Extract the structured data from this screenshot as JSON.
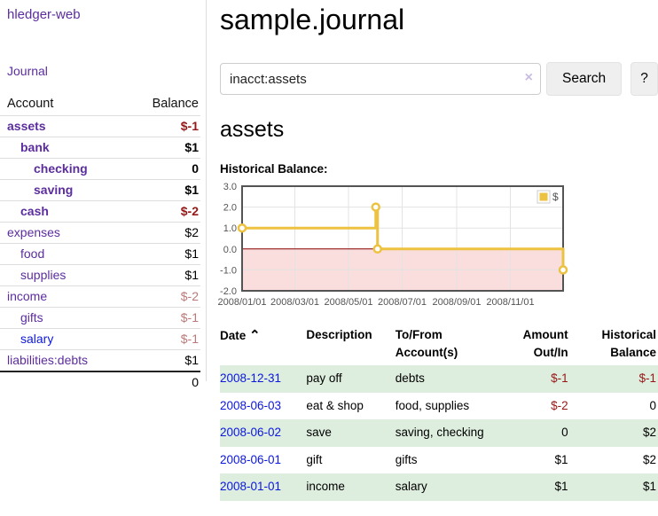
{
  "app": {
    "brand": "hledger-web"
  },
  "colors": {
    "link_purple": "#5c2d9e",
    "link_blue": "#0b16e0",
    "negative_red": "#961717",
    "negative_muted_red": "#bb7878",
    "row_stripe_green": "#deeede",
    "chart_series_yellow": "#EDC240",
    "chart_negative_fill": "#fadddd",
    "chart_zero_line": "#8b0000"
  },
  "sidebar": {
    "journal_link": "Journal",
    "headers": {
      "account": "Account",
      "balance": "Balance"
    },
    "accounts": [
      {
        "name": "assets",
        "balance": "$-1",
        "indent": 1,
        "bold": true
      },
      {
        "name": "bank",
        "balance": "$1",
        "indent": 2,
        "bold": true
      },
      {
        "name": "checking",
        "balance": "0",
        "indent": 3,
        "bold": true
      },
      {
        "name": "saving",
        "balance": "$1",
        "indent": 3,
        "bold": true
      },
      {
        "name": "cash",
        "balance": "$-2",
        "indent": 2,
        "bold": true
      },
      {
        "name": "expenses",
        "balance": "$2",
        "indent": 1,
        "bold": false
      },
      {
        "name": "food",
        "balance": "$1",
        "indent": 2,
        "bold": false
      },
      {
        "name": "supplies",
        "balance": "$1",
        "indent": 2,
        "bold": false
      },
      {
        "name": "income",
        "balance": "$-2",
        "indent": 1,
        "bold": false
      },
      {
        "name": "gifts",
        "balance": "$-1",
        "indent": 2,
        "bold": false
      },
      {
        "name": "salary",
        "balance": "$-1",
        "indent": 2,
        "bold": false
      },
      {
        "name": "liabilities:debts",
        "balance": "$1",
        "indent": 1,
        "bold": false
      }
    ],
    "total": "0"
  },
  "main": {
    "title": "sample.journal",
    "search": {
      "value": "inacct:assets",
      "clear_icon": "×",
      "search_label": "Search",
      "help_label": "?"
    },
    "account_heading": "assets",
    "chart_label": "Historical Balance:",
    "chart_data": {
      "type": "line",
      "step": true,
      "title": "Historical Balance:",
      "series": [
        {
          "name": "$",
          "color": "#EDC240",
          "points": [
            [
              "2008-01-01",
              1
            ],
            [
              "2008-06-01",
              2
            ],
            [
              "2008-06-03",
              0
            ],
            [
              "2008-12-31",
              -1
            ]
          ]
        }
      ],
      "xlim": [
        "2008-01-01",
        "2008-12-31"
      ],
      "ylim": [
        -2,
        3
      ],
      "xticks": [
        {
          "date": "2008-01-01",
          "label": "2008/01/01"
        },
        {
          "date": "2008-03-01",
          "label": "2008/03/01"
        },
        {
          "date": "2008-05-01",
          "label": "2008/05/01"
        },
        {
          "date": "2008-07-01",
          "label": "2008/07/01"
        },
        {
          "date": "2008-09-01",
          "label": "2008/09/01"
        },
        {
          "date": "2008-11-01",
          "label": "2008/11/01"
        }
      ],
      "yticks": [
        3,
        2,
        1,
        0,
        -1,
        -2
      ],
      "legend": {
        "label": "$",
        "position": "top-right"
      },
      "grid": true,
      "negative_region_fill": "#fadddd",
      "zero_line_color": "#8b0000",
      "border_color": "#545454",
      "tick_color": "#545454",
      "gridline_color": "#e3e3e3"
    },
    "register": {
      "sort_icon": "⌃",
      "headers": {
        "date": "Date",
        "description": "Description",
        "accounts": "To/From\nAccount(s)",
        "amount": "Amount\nOut/In",
        "balance": "Historical\nBalance"
      },
      "rows": [
        {
          "date": "2008-12-31",
          "description": "pay off",
          "accounts": "debts",
          "amount": "$-1",
          "balance": "$-1"
        },
        {
          "date": "2008-06-03",
          "description": "eat & shop",
          "accounts": "food, supplies",
          "amount": "$-2",
          "balance": "0"
        },
        {
          "date": "2008-06-02",
          "description": "save",
          "accounts": "saving, checking",
          "amount": "0",
          "balance": "$2"
        },
        {
          "date": "2008-06-01",
          "description": "gift",
          "accounts": "gifts",
          "amount": "$1",
          "balance": "$2"
        },
        {
          "date": "2008-01-01",
          "description": "income",
          "accounts": "salary",
          "amount": "$1",
          "balance": "$1"
        }
      ]
    }
  }
}
